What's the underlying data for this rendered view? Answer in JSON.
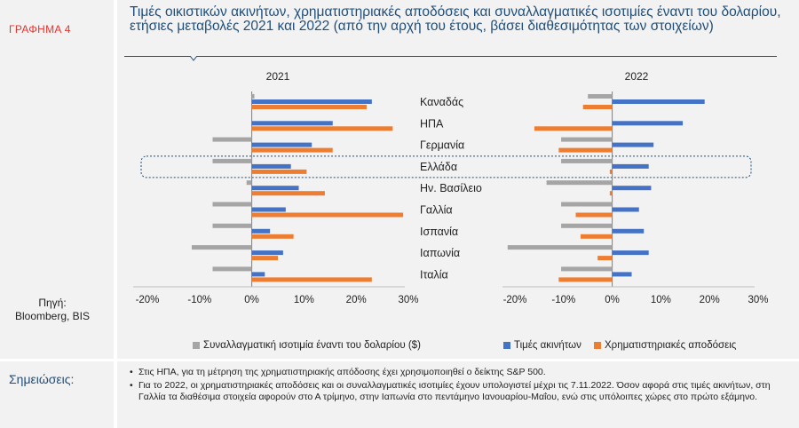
{
  "figure_label": "ΓΡΑΦΗΜΑ 4",
  "title": "Τιμές οικιστικών ακινήτων, χρηματιστηριακές αποδόσεις και συναλλαγματικές ισοτιμίες έναντι του δολαρίου, ετήσιες μεταβολές 2021 και 2022 (από την αρχή του έτους, βάσει διαθεσιμότητας των στοιχείων)",
  "source_label": "Πηγή:",
  "source_text": "Bloomberg, BIS",
  "notes_title": "Σημειώσεις:",
  "notes": [
    "Στις ΗΠΑ, για τη μέτρηση της χρηματιστηριακής απόδοσης έχει χρησιμοποιηθεί ο δείκτης S&P 500.",
    "Για το 2022, οι χρηματιστηριακές αποδόσεις και οι συναλλαγματικές ισοτιμίες έχουν υπολογιστεί μέχρι τις 7.11.2022. Όσον αφορά στις τιμές ακινήτων, στη Γαλλία τα διαθέσιμα στοιχεία αφορούν στο Α τρίμηνο, στην Ιαπωνία στο πεντάμηνο Ιανουαρίου-Μαΐου, ενώ στις υπόλοιπες χώρες στο πρώτο εξάμηνο."
  ],
  "colors": {
    "exchange": "#a5a5a5",
    "housing": "#4472c4",
    "stocks": "#ed7d31",
    "title": "#1f4e79",
    "label": "#e8322b"
  },
  "chart_data": {
    "type": "bar",
    "orientation": "horizontal",
    "categories": [
      "Καναδάς",
      "ΗΠΑ",
      "Γερμανία",
      "Ελλάδα",
      "Ην. Βασίλειο",
      "Γαλλία",
      "Ισπανία",
      "Ιαπωνία",
      "Ιταλία"
    ],
    "highlighted_category": "Ελλάδα",
    "legend": [
      {
        "key": "exchange",
        "name": "Συναλλαγματική ισοτιμία έναντι του δολαρίου ($)"
      },
      {
        "key": "housing",
        "name": "Τιμές ακινήτων"
      },
      {
        "key": "stocks",
        "name": "Χρηματιστηριακές αποδόσεις"
      }
    ],
    "legend_position": "bottom",
    "xlim": [
      -20,
      30
    ],
    "xticks": [
      "-20%",
      "-10%",
      "0%",
      "10%",
      "20%",
      "30%"
    ],
    "xtick_values": [
      -20,
      -10,
      0,
      10,
      20,
      30
    ],
    "panels": [
      {
        "title": "2021",
        "series": {
          "exchange": [
            0.5,
            0,
            -7.5,
            -7.5,
            -1,
            -7.5,
            -7.5,
            -11.5,
            -7.5
          ],
          "housing": [
            23,
            15.5,
            11.5,
            7.5,
            9,
            6.5,
            3.5,
            6,
            2.5
          ],
          "stocks": [
            22,
            27,
            15.5,
            10.5,
            14,
            29,
            8,
            5,
            23
          ]
        }
      },
      {
        "title": "2022",
        "series": {
          "exchange": [
            -5,
            0,
            -10.5,
            -10.5,
            -13.5,
            -10.5,
            -10.5,
            -21.5,
            -10.5
          ],
          "housing": [
            19,
            14.5,
            8.5,
            7.5,
            8,
            5.5,
            6.5,
            7.5,
            4
          ],
          "stocks": [
            -6,
            -16,
            -11,
            -0.5,
            -0.5,
            -7.5,
            -6.5,
            -3,
            -11
          ]
        }
      }
    ]
  }
}
